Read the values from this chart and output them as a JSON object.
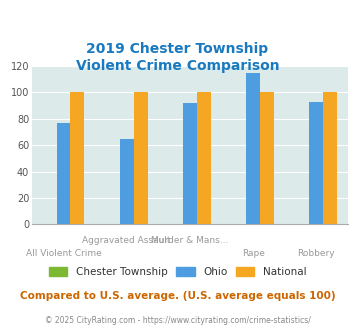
{
  "title_line1": "2019 Chester Township",
  "title_line2": "Violent Crime Comparison",
  "categories": [
    "All Violent Crime",
    "Aggravated Assault",
    "Murder & Mans...",
    "Rape",
    "Robbery"
  ],
  "series": {
    "Chester Township": [
      0,
      0,
      0,
      0,
      0
    ],
    "Ohio": [
      77,
      65,
      92,
      115,
      93
    ],
    "National": [
      100,
      100,
      100,
      100,
      100
    ]
  },
  "colors": {
    "Chester Township": "#7db832",
    "Ohio": "#4d9de0",
    "National": "#f5a623"
  },
  "ylim": [
    0,
    120
  ],
  "yticks": [
    0,
    20,
    40,
    60,
    80,
    100,
    120
  ],
  "plot_bg": "#ddeaea",
  "title_color": "#1a7abf",
  "footer_text": "Compared to U.S. average. (U.S. average equals 100)",
  "copyright_text": "© 2025 CityRating.com - https://www.cityrating.com/crime-statistics/",
  "footer_color": "#cc6600",
  "copyright_color": "#888888",
  "xlabel_color": "#999999",
  "bar_width": 0.22,
  "top_labels": {
    "1": "Aggravated Assault",
    "2": "Murder & Mans..."
  },
  "bot_labels": {
    "0": "All Violent Crime",
    "3": "Rape",
    "4": "Robbery"
  }
}
